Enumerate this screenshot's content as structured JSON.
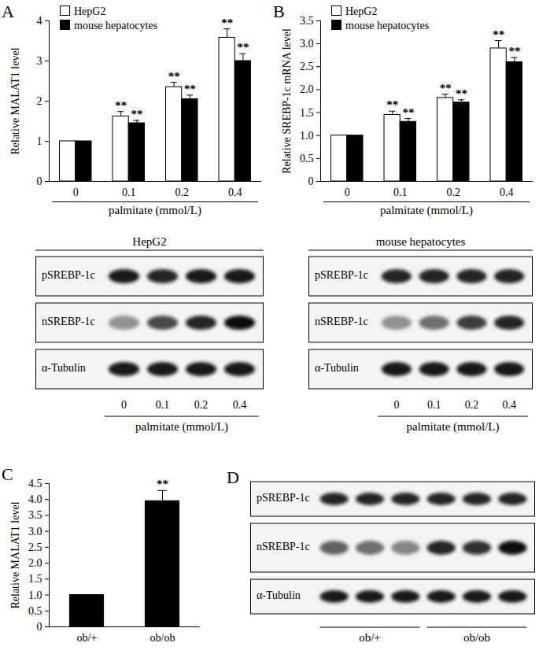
{
  "chart_data": [
    {
      "type": "bar",
      "panel_label": "A",
      "ylabel": "Relative MALAT1 level",
      "xlabel": "palmitate (mmol/L)",
      "categories": [
        "0",
        "0.1",
        "0.2",
        "0.4"
      ],
      "series": [
        {
          "name": "HepG2",
          "color": "#ffffff",
          "values": [
            1,
            1.62,
            2.35,
            3.58
          ],
          "errors": [
            null,
            0.12,
            0.12,
            0.22
          ],
          "annotations": [
            null,
            "**",
            "**",
            "**"
          ]
        },
        {
          "name": "mouse hepatocytes",
          "color": "#000000",
          "values": [
            1,
            1.45,
            2.05,
            3.0
          ],
          "errors": [
            null,
            0.07,
            0.1,
            0.18
          ],
          "annotations": [
            null,
            "**",
            "**",
            "**"
          ]
        }
      ],
      "ylim": [
        0,
        4
      ],
      "yticks": [
        0,
        1,
        2,
        3,
        4
      ],
      "legend": "upper left"
    },
    {
      "type": "bar",
      "panel_label": "B",
      "ylabel": "Relative SREBP-1c mRNA level",
      "xlabel": "palmitate (mmol/L)",
      "categories": [
        "0",
        "0.1",
        "0.2",
        "0.4"
      ],
      "series": [
        {
          "name": "HepG2",
          "color": "#ffffff",
          "values": [
            1,
            1.45,
            1.82,
            2.9
          ],
          "errors": [
            null,
            0.08,
            0.08,
            0.17
          ],
          "annotations": [
            null,
            "**",
            "**",
            "**"
          ]
        },
        {
          "name": "mouse hepatocytes",
          "color": "#000000",
          "values": [
            1,
            1.3,
            1.72,
            2.6
          ],
          "errors": [
            null,
            0.07,
            0.06,
            0.1
          ],
          "annotations": [
            null,
            "**",
            "**",
            "**"
          ]
        }
      ],
      "ylim": [
        0,
        3.5
      ],
      "yticks": [
        0,
        0.5,
        {
          "value": 1,
          "label": "1.0"
        },
        1.5,
        {
          "value": 2,
          "label": "2.0"
        },
        2.5,
        {
          "value": 3,
          "label": "3.0"
        },
        3.5
      ],
      "legend": "upper left"
    },
    {
      "type": "bar",
      "panel_label": "C",
      "ylabel": "Relative MALAT1 level",
      "categories": [
        "ob/+",
        "ob/ob"
      ],
      "values": [
        1,
        3.95
      ],
      "errors": [
        null,
        0.33
      ],
      "annotations": [
        null,
        "**"
      ],
      "color": "#000000",
      "ylim": [
        0,
        4.5
      ],
      "yticks": [
        0,
        0.5,
        {
          "value": 1,
          "label": "1.0"
        },
        1.5,
        {
          "value": 2,
          "label": "2.0"
        },
        2.5,
        {
          "value": 3,
          "label": "3.0"
        },
        3.5,
        {
          "value": 4,
          "label": "4.0"
        },
        4.5
      ]
    }
  ],
  "blots": [
    {
      "title": "HepG2",
      "lanes": [
        "0",
        "0.1",
        "0.2",
        "0.4"
      ],
      "xlabel": "palmitate (mmol/L)",
      "rows": [
        {
          "label": "pSREBP-1c",
          "intensity": [
            0.9,
            0.85,
            0.9,
            0.9
          ]
        },
        {
          "label": "nSREBP-1c",
          "intensity": [
            0.4,
            0.7,
            0.85,
            0.95
          ]
        },
        {
          "label": "α-Tubulin",
          "intensity": [
            0.9,
            0.9,
            0.9,
            0.9
          ]
        }
      ]
    },
    {
      "title": "mouse hepatocytes",
      "lanes": [
        "0",
        "0.1",
        "0.2",
        "0.4"
      ],
      "xlabel": "palmitate (mmol/L)",
      "rows": [
        {
          "label": "pSREBP-1c",
          "intensity": [
            0.85,
            0.85,
            0.85,
            0.85
          ]
        },
        {
          "label": "nSREBP-1c",
          "intensity": [
            0.4,
            0.55,
            0.75,
            0.85
          ]
        },
        {
          "label": "α-Tubulin",
          "intensity": [
            0.9,
            0.9,
            0.9,
            0.9
          ]
        }
      ]
    },
    {
      "panel_label": "D",
      "groups": [
        {
          "label": "ob/+",
          "lanes": 3
        },
        {
          "label": "ob/ob",
          "lanes": 3
        }
      ],
      "rows": [
        {
          "label": "pSREBP-1c",
          "intensity": [
            0.85,
            0.85,
            0.85,
            0.85,
            0.85,
            0.85
          ]
        },
        {
          "label": "nSREBP-1c",
          "intensity": [
            0.6,
            0.55,
            0.45,
            0.85,
            0.8,
            0.95
          ]
        },
        {
          "label": "α-Tubulin",
          "intensity": [
            0.9,
            0.9,
            0.9,
            0.9,
            0.9,
            0.9
          ]
        }
      ]
    }
  ]
}
